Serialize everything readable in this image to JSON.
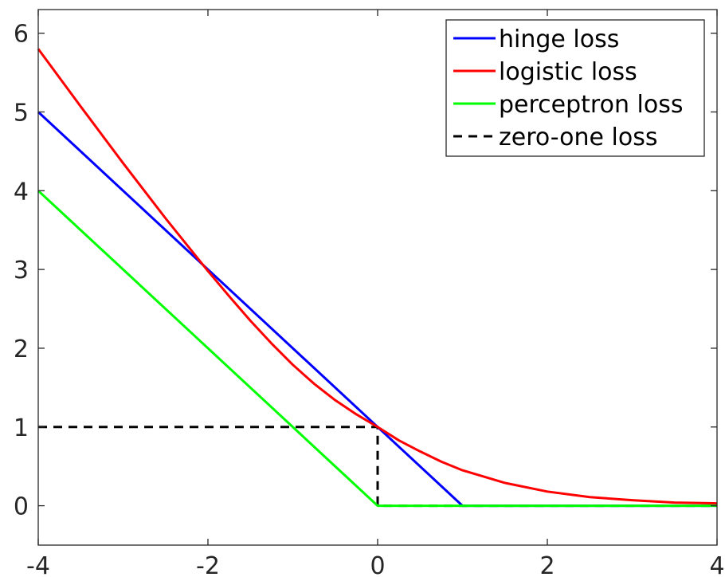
{
  "chart_data": {
    "type": "line",
    "title": "",
    "xlabel": "",
    "ylabel": "",
    "xlim": [
      -4,
      4
    ],
    "ylim": [
      -0.5,
      6.3
    ],
    "x_ticks": [
      -4,
      -2,
      0,
      2,
      4
    ],
    "y_ticks": [
      0,
      1,
      2,
      3,
      4,
      5,
      6
    ],
    "grid": false,
    "legend_position": "top-right",
    "series": [
      {
        "name": "hinge loss",
        "color": "#0000ff",
        "dash": "solid",
        "x": [
          -4,
          1,
          4
        ],
        "y": [
          5,
          0,
          0
        ]
      },
      {
        "name": "logistic loss",
        "color": "#ff0000",
        "dash": "solid",
        "x": [
          -4,
          -3.5,
          -3,
          -2.5,
          -2,
          -1.75,
          -1.5,
          -1.25,
          -1,
          -0.75,
          -0.5,
          -0.25,
          0,
          0.25,
          0.5,
          0.75,
          1,
          1.5,
          2,
          2.5,
          3,
          3.5,
          4
        ],
        "y": [
          5.8,
          5.07,
          4.35,
          3.65,
          2.98,
          2.66,
          2.35,
          2.06,
          1.79,
          1.55,
          1.34,
          1.16,
          1.0,
          0.83,
          0.69,
          0.56,
          0.45,
          0.29,
          0.18,
          0.11,
          0.07,
          0.04,
          0.03
        ]
      },
      {
        "name": "perceptron loss",
        "color": "#00ff00",
        "dash": "solid",
        "x": [
          -4,
          0,
          4
        ],
        "y": [
          4,
          0,
          0
        ]
      },
      {
        "name": "zero-one loss",
        "color": "#000000",
        "dash": "dashed",
        "x": [
          -4,
          0,
          0,
          4
        ],
        "y": [
          1,
          1,
          0,
          0
        ]
      }
    ]
  }
}
